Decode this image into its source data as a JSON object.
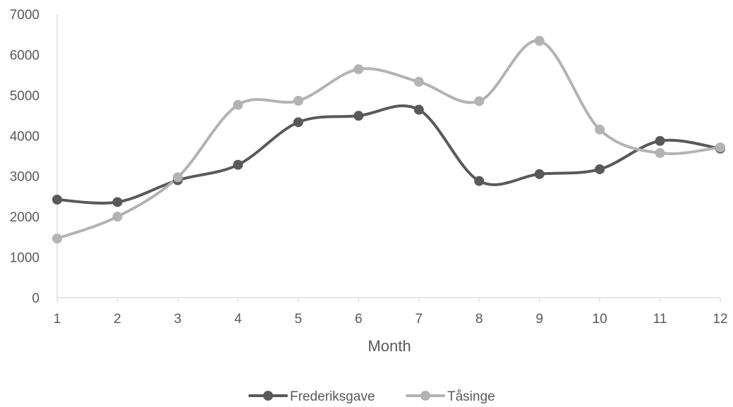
{
  "chart_data": {
    "type": "line",
    "smooth": true,
    "title": "",
    "xlabel": "Month",
    "ylabel": "",
    "categories": [
      "1",
      "2",
      "3",
      "4",
      "5",
      "6",
      "7",
      "8",
      "9",
      "10",
      "11",
      "12"
    ],
    "ylim": [
      0,
      7000
    ],
    "yticks": [
      "0",
      "1000",
      "2000",
      "3000",
      "4000",
      "5000",
      "6000",
      "7000"
    ],
    "grid": false,
    "legend_position": "bottom-center",
    "series": [
      {
        "name": "Frederiksgave",
        "color": "#595959",
        "values": [
          2420,
          2360,
          2900,
          3280,
          4330,
          4490,
          4640,
          2880,
          3050,
          3170,
          3870,
          3680
        ]
      },
      {
        "name": "Tåsinge",
        "color": "#b3b3b3",
        "values": [
          1460,
          2000,
          2970,
          4760,
          4860,
          5640,
          5330,
          4850,
          6340,
          4150,
          3570,
          3710
        ]
      }
    ],
    "axis_color": "#d9d9d9",
    "text_color": "#595959"
  }
}
